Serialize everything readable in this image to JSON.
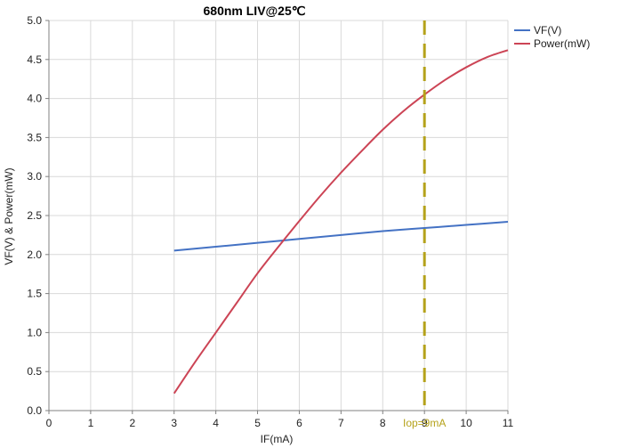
{
  "chart_data": {
    "type": "line",
    "title": "680nm LIV@25℃",
    "xlabel": "IF(mA)",
    "ylabel": "VF(V) & Power(mW)",
    "xlim": [
      0,
      11
    ],
    "ylim": [
      0,
      5.0
    ],
    "x_ticks": [
      "0",
      "1",
      "2",
      "3",
      "4",
      "5",
      "6",
      "7",
      "8",
      "9",
      "10",
      "11"
    ],
    "y_ticks": [
      "0.0",
      "0.5",
      "1.0",
      "1.5",
      "2.0",
      "2.5",
      "3.0",
      "3.5",
      "4.0",
      "4.5",
      "5.0"
    ],
    "grid": true,
    "legend_position": "top-right",
    "series": [
      {
        "name": "VF(V)",
        "color": "#4472C4",
        "x": [
          3,
          4,
          5,
          6,
          7,
          8,
          9,
          10,
          11
        ],
        "y": [
          2.05,
          2.1,
          2.15,
          2.2,
          2.25,
          2.3,
          2.34,
          2.38,
          2.42
        ]
      },
      {
        "name": "Power(mW)",
        "color": "#CC4455",
        "x": [
          3,
          3.5,
          4,
          4.5,
          5,
          5.5,
          6,
          6.5,
          7,
          7.5,
          8,
          8.5,
          9,
          9.5,
          10,
          10.5,
          11
        ],
        "y": [
          0.22,
          0.62,
          1.0,
          1.38,
          1.76,
          2.1,
          2.43,
          2.75,
          3.05,
          3.33,
          3.6,
          3.84,
          4.05,
          4.24,
          4.4,
          4.53,
          4.62
        ]
      }
    ],
    "annotations": [
      {
        "type": "vline",
        "x": 9,
        "label": "Iop=9mA",
        "color": "#B5A21A"
      }
    ]
  }
}
